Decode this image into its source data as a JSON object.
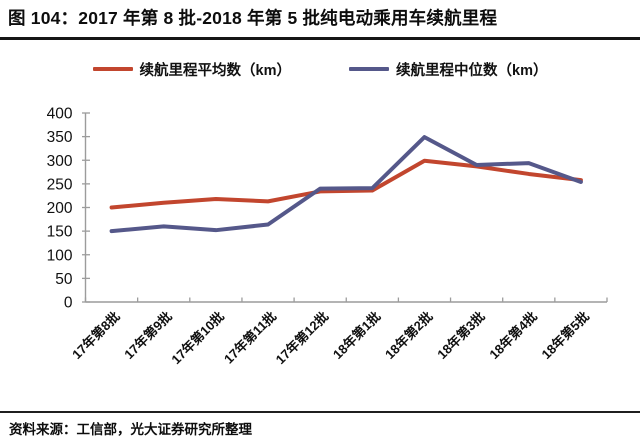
{
  "figure": {
    "title": "图 104：2017 年第 8 批-2018 年第 5 批纯电动乘用车续航里程",
    "source": "资料来源：工信部，光大证券研究所整理"
  },
  "chart_data": {
    "type": "line",
    "title": "2017年第8批-2018年第5批纯电动乘用车续航里程",
    "categories": [
      "17年第8批",
      "17年第9批",
      "17年第10批",
      "17年第11批",
      "17年第12批",
      "18年第1批",
      "18年第2批",
      "18年第3批",
      "18年第4批",
      "18年第5批"
    ],
    "series": [
      {
        "name": "续航里程平均数（km）",
        "color": "#c2462e",
        "values": [
          200,
          210,
          218,
          213,
          234,
          236,
          299,
          287,
          271,
          258
        ]
      },
      {
        "name": "续航里程中位数（km）",
        "color": "#55588a",
        "values": [
          150,
          160,
          152,
          164,
          240,
          241,
          349,
          290,
          294,
          254
        ]
      }
    ],
    "xlabel": "",
    "ylabel": "",
    "ylim": [
      0,
      400
    ],
    "ytick_step": 50,
    "yticks": [
      0,
      50,
      100,
      150,
      200,
      250,
      300,
      350,
      400
    ],
    "grid": false,
    "legend_position": "top",
    "axis_color": "#9c9c9c",
    "text_color": "#111111",
    "line_width": 4
  }
}
